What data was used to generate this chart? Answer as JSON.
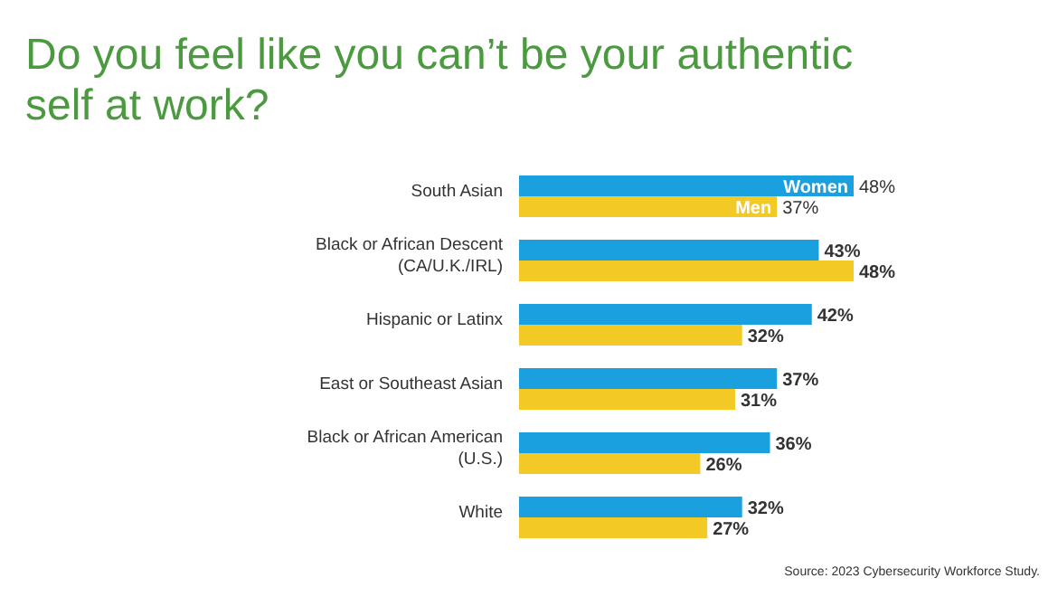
{
  "chart_data": {
    "type": "bar",
    "orientation": "horizontal",
    "title": "Do you feel like you can’t be your authentic self at work?",
    "categories": [
      "South Asian",
      "Black or African Descent (CA/U.K./IRL)",
      "Hispanic or Latinx",
      "East or Southeast Asian",
      "Black or African American (U.S.)",
      "White"
    ],
    "series": [
      {
        "name": "Women",
        "color": "#1a9fdf",
        "values": [
          48,
          43,
          42,
          37,
          36,
          32
        ],
        "value_labels": [
          "48%",
          "43%",
          "42%",
          "37%",
          "36%",
          "32%"
        ]
      },
      {
        "name": "Men",
        "color": "#f2c925",
        "values": [
          37,
          48,
          32,
          31,
          26,
          27
        ],
        "value_labels": [
          "37%",
          "48%",
          "32%",
          "31%",
          "26%",
          "27%"
        ]
      }
    ],
    "annotations": [
      "Source: 2023 Cybersecurity Workforce Study."
    ]
  }
}
